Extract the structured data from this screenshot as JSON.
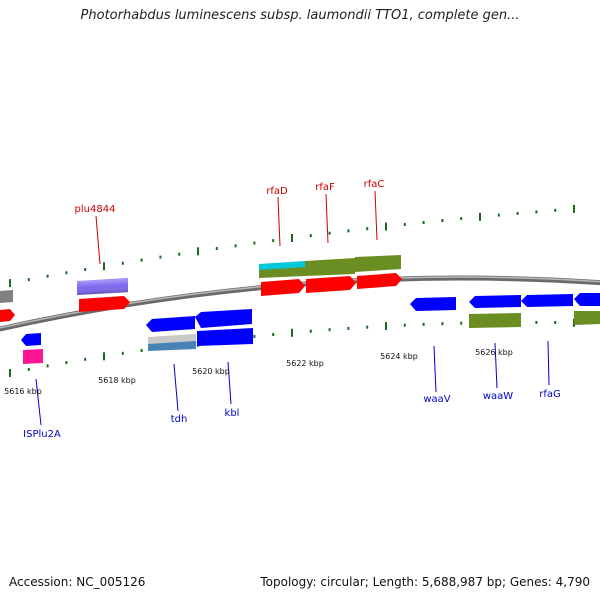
{
  "title": "Photorhabdus luminescens subsp. laumondii TTO1, complete gen...",
  "accession": "Accession: NC_005126",
  "topology": "Topology: circular; Length: 5,688,987 bp; Genes: 4,790",
  "scale_labels": [
    "5616 kbp",
    "5618 kbp",
    "5620 kbp",
    "5622 kbp",
    "5624 kbp",
    "5626 kbp"
  ],
  "gene_labels": {
    "forward": [
      "plu4844",
      "rfaD",
      "rfaF",
      "rfaC"
    ],
    "reverse": [
      "ISPlu2A",
      "tdh",
      "kbl",
      "waaV",
      "waaW",
      "rfaG"
    ]
  },
  "colors": {
    "forward_label": "#cc0000",
    "reverse_label": "#0000cc",
    "cds": "#ff0000",
    "cds_reverse": "#0000ff",
    "tick": "#1a6b1a",
    "backbone": "#8a8a8a",
    "green_feature": "#6b8e23",
    "purple_feature": "#7b68ee",
    "cyan_feature": "#00c8d8",
    "pink_feature": "#ff1493",
    "steel_feature": "#4682b4",
    "silver_feature": "#c8c8c8",
    "gray_feature": "#808080"
  }
}
